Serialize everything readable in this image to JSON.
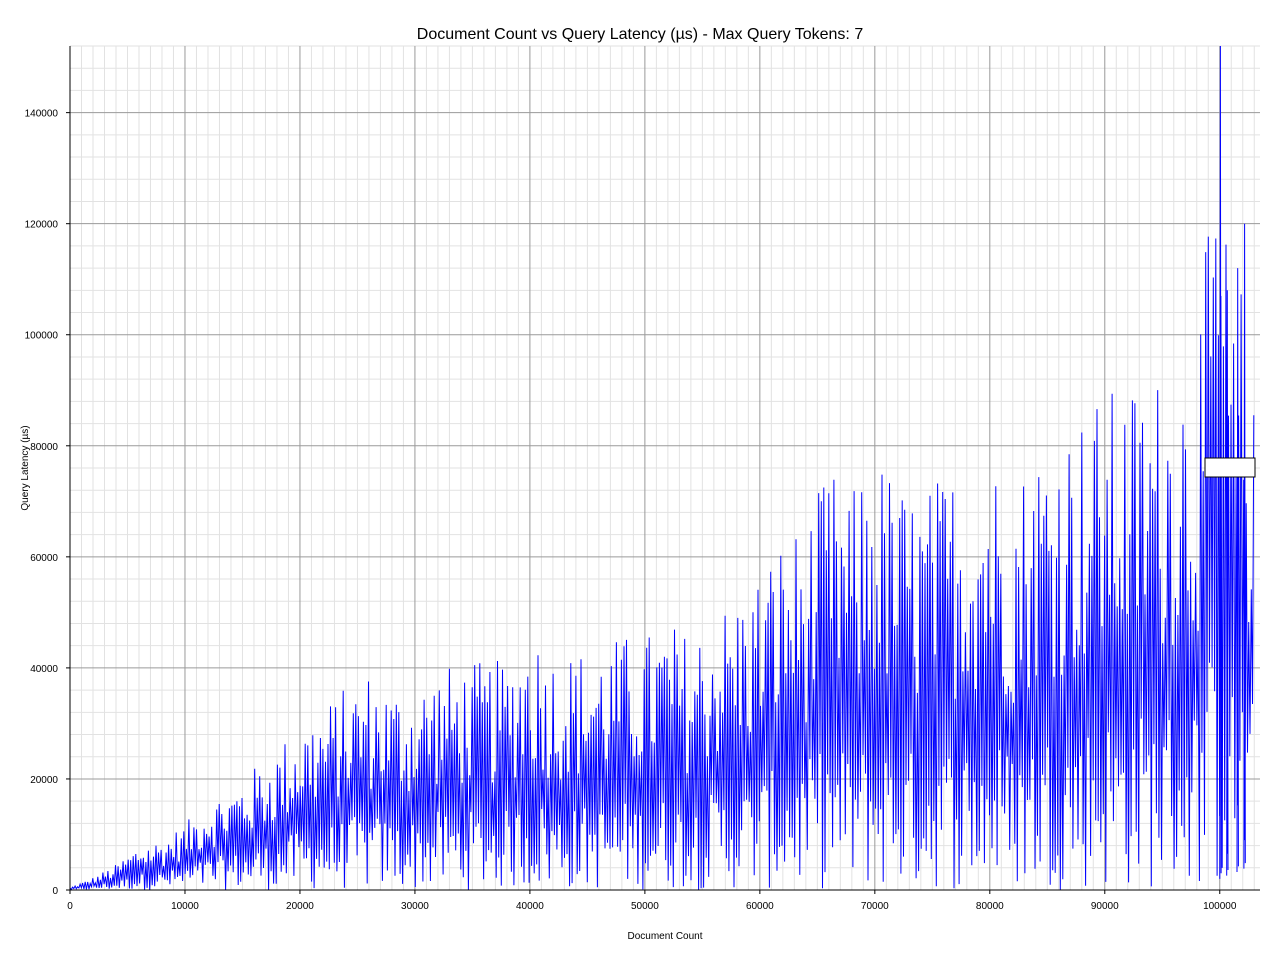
{
  "chart_data": {
    "type": "line",
    "title": "Document Count vs Query Latency (µs) - Max Query Tokens: 7",
    "xlabel": "Document Count",
    "ylabel": "Query Latency (µs)",
    "xlim": [
      0,
      103500
    ],
    "ylim": [
      0,
      152000
    ],
    "x_major_ticks": [
      0,
      10000,
      20000,
      30000,
      40000,
      50000,
      60000,
      70000,
      80000,
      90000,
      100000
    ],
    "y_major_ticks": [
      0,
      20000,
      40000,
      60000,
      80000,
      100000,
      120000,
      140000
    ],
    "x_tick_labels": [
      "0",
      "10000",
      "20000",
      "30000",
      "40000",
      "50000",
      "60000",
      "70000",
      "80000",
      "90000",
      "100000"
    ],
    "y_tick_labels": [
      "0",
      "20000",
      "40000",
      "60000",
      "80000",
      "100000",
      "120000",
      "140000"
    ],
    "grid": true,
    "legend": "right",
    "series_color": "#0000ff",
    "series": [
      {
        "name": "",
        "x": [
          0,
          2000,
          4000,
          6000,
          8000,
          10000,
          12000,
          14000,
          16000,
          18000,
          20000,
          22000,
          24000,
          26000,
          28000,
          30000,
          32000,
          34000,
          36000,
          38000,
          40000,
          42000,
          44000,
          46000,
          48000,
          50000,
          52000,
          54000,
          56000,
          58000,
          60000,
          62000,
          64000,
          66000,
          68000,
          70000,
          72000,
          74000,
          76000,
          78000,
          80000,
          82000,
          84000,
          86000,
          88000,
          90000,
          92000,
          94000,
          96000,
          98000,
          100000,
          101000,
          102000,
          103000
        ],
        "y_peak": [
          500,
          2500,
          5000,
          9000,
          10000,
          13000,
          18000,
          20000,
          24000,
          28000,
          33000,
          36000,
          40000,
          43000,
          40000,
          40000,
          44000,
          44000,
          45000,
          45000,
          52000,
          47000,
          47000,
          48000,
          50000,
          50000,
          53000,
          50000,
          55000,
          58000,
          63000,
          70000,
          72000,
          83000,
          78000,
          87000,
          80000,
          78000,
          82000,
          84000,
          86000,
          80000,
          88000,
          92000,
          94000,
          98000,
          99000,
          101000,
          104000,
          108000,
          152000,
          112000,
          120000,
          94000
        ],
        "y_trough": [
          0,
          0,
          0,
          0,
          0,
          0,
          0,
          0,
          0,
          0,
          0,
          0,
          0,
          0,
          0,
          0,
          0,
          0,
          0,
          0,
          0,
          0,
          0,
          0,
          0,
          0,
          0,
          0,
          0,
          0,
          0,
          0,
          0,
          0,
          0,
          0,
          0,
          0,
          0,
          0,
          0,
          0,
          0,
          0,
          0,
          0,
          0,
          0,
          0,
          0,
          0,
          1000,
          1500,
          5000
        ]
      }
    ]
  }
}
